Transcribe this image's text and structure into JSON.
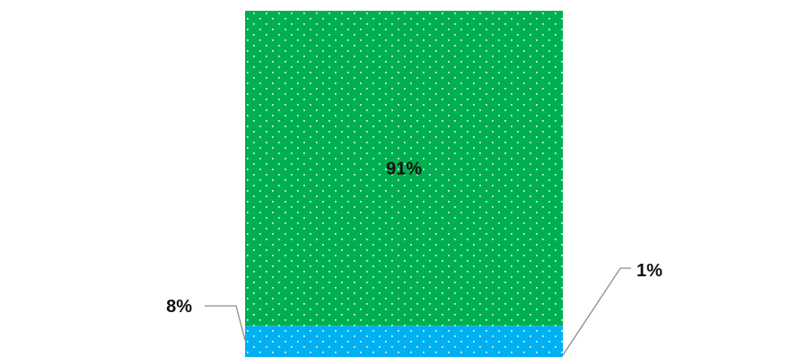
{
  "chart_data": {
    "type": "bar",
    "stacked": true,
    "categories": [
      ""
    ],
    "series": [
      {
        "name": "",
        "values": [
          91
        ],
        "label": "91%",
        "color": "#00B050"
      },
      {
        "name": "",
        "values": [
          8
        ],
        "label": "8%",
        "color": "#00B0F0"
      },
      {
        "name": "",
        "values": [
          1
        ],
        "label": "1%",
        "color": "#00B0F0"
      }
    ],
    "ylim": [
      0,
      100
    ],
    "unit": "%",
    "pattern": "dotted",
    "grid": false,
    "legend": "none"
  }
}
